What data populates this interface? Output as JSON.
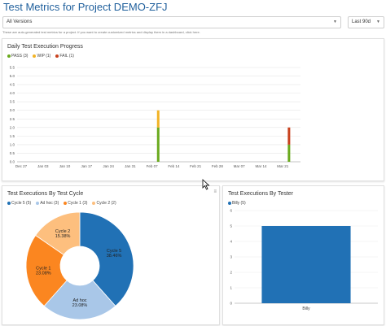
{
  "page": {
    "title": "Test Metrics for Project DEMO-ZFJ",
    "version_select": "All Versions",
    "period_select": "Last 90d",
    "note": "These are auto-generated test metrics for a project. If you want to create customized metrics and display them in a dashboard, click here."
  },
  "colors": {
    "pass": "#6aaa1e",
    "wip": "#f2b325",
    "fail": "#c8421e",
    "cycle5": "#2171b5",
    "adhoc": "#a9c7e8",
    "cycle1": "#fb8620",
    "cycle2": "#fdbf7e",
    "bar": "#2171b5",
    "title": "#1f5f9c"
  },
  "chart_data": [
    {
      "type": "bar",
      "title": "Daily Test Execution Progress",
      "stacked": true,
      "legend": [
        "PASS (3)",
        "WIP (1)",
        "FAIL (1)"
      ],
      "ylim": [
        0,
        5.5
      ],
      "yticks": [
        "0.0",
        "0.5",
        "1.0",
        "1.5",
        "2.0",
        "2.5",
        "3.0",
        "3.5",
        "4.0",
        "4.5",
        "5.0",
        "5.5"
      ],
      "xticks": [
        "Dec 27",
        "Jan 03",
        "Jan 10",
        "Jan 17",
        "Jan 24",
        "Jan 31",
        "Feb 07",
        "Feb 14",
        "Feb 21",
        "Feb 28",
        "Mar 07",
        "Mar 14",
        "Mar 21"
      ],
      "bars": [
        {
          "x": "Feb 09",
          "pass": 2,
          "wip": 1,
          "fail": 0
        },
        {
          "x": "Mar 23",
          "pass": 1,
          "wip": 0,
          "fail": 1
        }
      ]
    },
    {
      "type": "pie",
      "title": "Test Executions By Test Cycle",
      "donut": true,
      "legend": [
        "Cycle 5 (5)",
        "Ad hoc (3)",
        "Cycle 1 (3)",
        "Cycle 2 (2)"
      ],
      "slices": [
        {
          "label": "Cycle 5",
          "percent": "38.46%",
          "value": 5
        },
        {
          "label": "Ad hoc",
          "percent": "23.08%",
          "value": 3
        },
        {
          "label": "Cycle 1",
          "percent": "23.08%",
          "value": 3
        },
        {
          "label": "Cycle 2",
          "percent": "15.38%",
          "value": 2
        }
      ]
    },
    {
      "type": "bar",
      "title": "Test Executions By Tester",
      "legend": [
        "Billy (5)"
      ],
      "categories": [
        "Billy"
      ],
      "values": [
        5
      ],
      "ylim": [
        0,
        6
      ],
      "yticks": [
        "0",
        "1",
        "2",
        "3",
        "4",
        "5",
        "6"
      ]
    }
  ]
}
